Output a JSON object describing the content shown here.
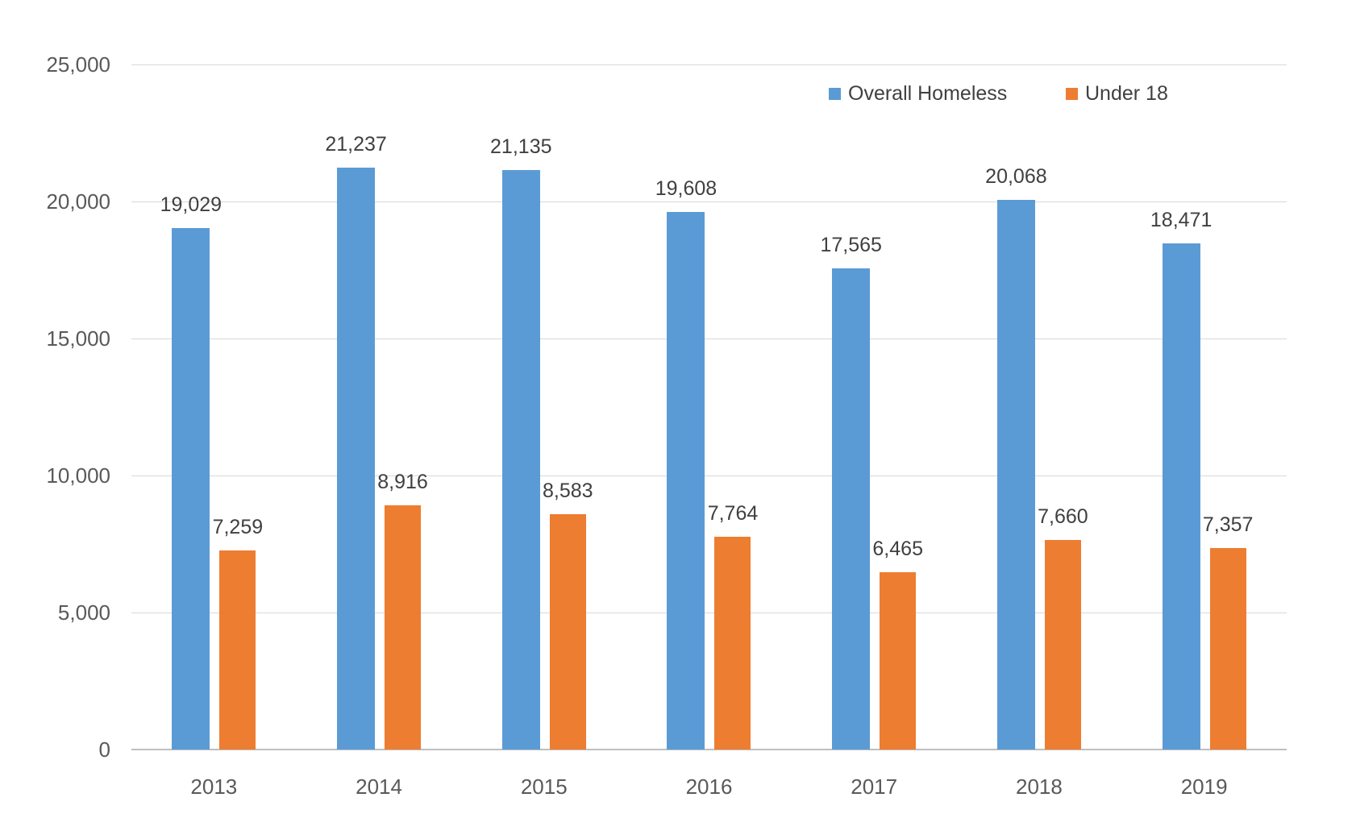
{
  "chart_data": {
    "type": "bar",
    "title": "",
    "categories": [
      "2013",
      "2014",
      "2015",
      "2016",
      "2017",
      "2018",
      "2019"
    ],
    "series": [
      {
        "name": "Overall Homeless",
        "color": "#5B9BD5",
        "values": [
          19029,
          21237,
          21135,
          19608,
          17565,
          20068,
          18471
        ],
        "labels": [
          "19,029",
          "21,237",
          "21,135",
          "19,608",
          "17,565",
          "20,068",
          "18,471"
        ]
      },
      {
        "name": "Under 18",
        "color": "#ED7D31",
        "values": [
          7259,
          8916,
          8583,
          7764,
          6465,
          7660,
          7357
        ],
        "labels": [
          "7,259",
          "8,916",
          "8,583",
          "7,764",
          "6,465",
          "7,660",
          "7,357"
        ]
      }
    ],
    "xlabel": "",
    "ylabel": "",
    "ylim": [
      0,
      25000
    ],
    "ytick_interval": 5000,
    "ytick_values": [
      0,
      5000,
      10000,
      15000,
      20000,
      25000
    ],
    "ytick_labels": [
      "0",
      "5,000",
      "10,000",
      "15,000",
      "20,000",
      "25,000"
    ],
    "grid": true,
    "data_labels": true,
    "legend_position": "top-right"
  },
  "colors": {
    "series_blue": "#5B9BD5",
    "series_orange": "#ED7D31",
    "gridline": "#D9D9D9",
    "axis_line": "#BFBFBF",
    "axis_text": "#595959",
    "data_label_text": "#404040"
  }
}
